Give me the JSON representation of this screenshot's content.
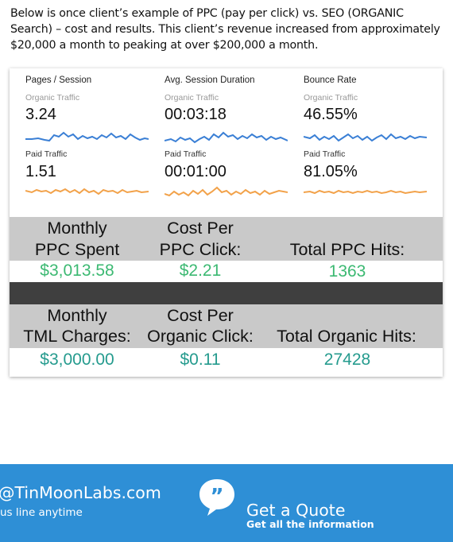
{
  "intro": "Below is once client’s example of PPC (pay per click) vs. SEO (ORGANIC Search) – cost and results. This client’s revenue increased from approximately $20,000 a month to peaking at over $200,000 a month.",
  "metrics": [
    {
      "heading": "Pages / Session",
      "organic_label": "Organic Traffic",
      "organic_value": "3.24",
      "paid_label": "Paid Traffic",
      "paid_value": "1.51"
    },
    {
      "heading": "Avg. Session Duration",
      "organic_label": "Organic Traffic",
      "organic_value": "00:03:18",
      "paid_label": "Paid Traffic",
      "paid_value": "00:01:00"
    },
    {
      "heading": "Bounce Rate",
      "organic_label": "Organic Traffic",
      "organic_value": "46.55%",
      "paid_label": "Paid Traffic",
      "paid_value": "81.05%"
    }
  ],
  "colors": {
    "organic_line": "#3a7fd5",
    "paid_line": "#f2a24a",
    "green": "#3cb972",
    "teal": "#259b8e",
    "footer": "#2e8fd6"
  },
  "ppc": {
    "col1": [
      "Monthly",
      "PPC Spent"
    ],
    "col2": [
      "Cost Per",
      "PPC Click:"
    ],
    "col3": "Total PPC Hits:",
    "spent": "$3,013.58",
    "cpc": "$2.21",
    "hits": "1363"
  },
  "organic": {
    "col1": [
      "Monthly",
      "TML Charges:"
    ],
    "col2": [
      "Cost Per",
      "Organic Click:"
    ],
    "col3": "Total Organic Hits:",
    "charges": "$3,000.00",
    "cpc": "$0.11",
    "hits": "27428"
  },
  "footer": {
    "email": "@TinMoonLabs.com",
    "phone_line": "us line anytime",
    "quote_icon": "quote-bubble-icon",
    "quote_title": "Get a Quote",
    "quote_sub": "Get all the information"
  }
}
